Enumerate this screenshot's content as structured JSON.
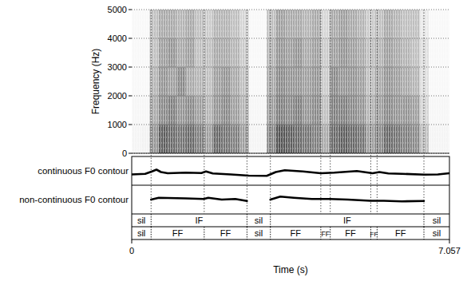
{
  "chart_data": {
    "type": "spectrogram",
    "xlabel": "Time (s)",
    "ylabel": "Frequency (Hz)",
    "xlim": [
      0,
      7.057
    ],
    "xticks": [
      0,
      7.057
    ],
    "ylim": [
      0,
      5000
    ],
    "yticks": [
      0,
      1000,
      2000,
      3000,
      4000,
      5000
    ],
    "grid": true,
    "spectrogram": {
      "time_step": 0.2,
      "freq_step": 1000,
      "cells": [
        [
          0.05,
          0.04,
          0.03,
          0.03,
          0.03
        ],
        [
          0.06,
          0.04,
          0.03,
          0.03,
          0.03
        ],
        [
          0.5,
          0.4,
          0.35,
          0.3,
          0.3
        ],
        [
          0.75,
          0.55,
          0.5,
          0.45,
          0.4
        ],
        [
          0.7,
          0.6,
          0.45,
          0.5,
          0.4
        ],
        [
          0.65,
          0.5,
          0.55,
          0.4,
          0.35
        ],
        [
          0.7,
          0.55,
          0.4,
          0.45,
          0.4
        ],
        [
          0.6,
          0.45,
          0.35,
          0.3,
          0.3
        ],
        [
          0.45,
          0.35,
          0.3,
          0.3,
          0.25
        ],
        [
          0.7,
          0.5,
          0.45,
          0.4,
          0.35
        ],
        [
          0.65,
          0.55,
          0.5,
          0.4,
          0.35
        ],
        [
          0.6,
          0.45,
          0.4,
          0.35,
          0.3
        ],
        [
          0.45,
          0.35,
          0.3,
          0.25,
          0.2
        ],
        [
          0.05,
          0.04,
          0.03,
          0.03,
          0.03
        ],
        [
          0.05,
          0.04,
          0.03,
          0.03,
          0.03
        ],
        [
          0.55,
          0.45,
          0.4,
          0.35,
          0.3
        ],
        [
          0.8,
          0.6,
          0.55,
          0.5,
          0.45
        ],
        [
          0.75,
          0.55,
          0.5,
          0.45,
          0.4
        ],
        [
          0.7,
          0.6,
          0.5,
          0.5,
          0.4
        ],
        [
          0.65,
          0.5,
          0.45,
          0.4,
          0.35
        ],
        [
          0.6,
          0.55,
          0.5,
          0.45,
          0.4
        ],
        [
          0.4,
          0.3,
          0.25,
          0.25,
          0.2
        ],
        [
          0.7,
          0.6,
          0.55,
          0.45,
          0.4
        ],
        [
          0.75,
          0.6,
          0.5,
          0.5,
          0.45
        ],
        [
          0.7,
          0.55,
          0.5,
          0.45,
          0.4
        ],
        [
          0.65,
          0.5,
          0.45,
          0.4,
          0.35
        ],
        [
          0.45,
          0.35,
          0.3,
          0.3,
          0.25
        ],
        [
          0.55,
          0.45,
          0.4,
          0.35,
          0.3
        ],
        [
          0.7,
          0.55,
          0.5,
          0.45,
          0.4
        ],
        [
          0.65,
          0.5,
          0.45,
          0.4,
          0.35
        ],
        [
          0.6,
          0.5,
          0.4,
          0.35,
          0.3
        ],
        [
          0.55,
          0.45,
          0.35,
          0.3,
          0.3
        ],
        [
          0.3,
          0.2,
          0.15,
          0.15,
          0.1
        ],
        [
          0.05,
          0.04,
          0.03,
          0.03,
          0.03
        ],
        [
          0.05,
          0.04,
          0.03,
          0.03,
          0.03
        ],
        [
          0.05,
          0.04,
          0.03,
          0.03,
          0.03
        ]
      ]
    },
    "f0lim": [
      100,
      300
    ],
    "series": [
      {
        "name": "continuous F0 contour",
        "color": "#000000",
        "x": [
          0,
          0.3,
          0.45,
          0.55,
          0.65,
          0.8,
          1.2,
          1.55,
          1.65,
          1.8,
          2.2,
          2.6,
          3.0,
          3.2,
          3.4,
          3.8,
          4.2,
          4.5,
          5.0,
          5.35,
          5.5,
          5.7,
          6.0,
          6.5,
          6.8,
          7.057
        ],
        "values": [
          170,
          175,
          195,
          210,
          190,
          180,
          185,
          182,
          195,
          178,
          170,
          160,
          158,
          190,
          205,
          195,
          180,
          185,
          198,
          180,
          190,
          178,
          175,
          168,
          170,
          180
        ]
      },
      {
        "name": "non-continuous F0 contour",
        "color": "#000000",
        "x": [
          0.43,
          0.6,
          0.8,
          1.2,
          1.6,
          1.7,
          2.0,
          2.3,
          2.56,
          2.8,
          3.08,
          3.3,
          3.6,
          4.0,
          4.4,
          4.8,
          5.3,
          5.6,
          6.0,
          6.49
        ],
        "values": [
          200,
          215,
          213,
          210,
          205,
          215,
          200,
          205,
          188,
          null,
          200,
          225,
          215,
          205,
          205,
          200,
          190,
          190,
          185,
          188
        ]
      }
    ],
    "tiers": [
      {
        "intervals": [
          {
            "start": 0,
            "end": 0.43,
            "label": "sil"
          },
          {
            "start": 0.43,
            "end": 2.56,
            "label": "IF"
          },
          {
            "start": 2.56,
            "end": 3.08,
            "label": "sil"
          },
          {
            "start": 3.08,
            "end": 6.49,
            "label": "IF"
          },
          {
            "start": 6.49,
            "end": 7.057,
            "label": "sil"
          }
        ]
      },
      {
        "intervals": [
          {
            "start": 0,
            "end": 0.43,
            "label": "sil"
          },
          {
            "start": 0.43,
            "end": 1.61,
            "label": "FF"
          },
          {
            "start": 1.61,
            "end": 2.56,
            "label": "FF"
          },
          {
            "start": 2.56,
            "end": 3.08,
            "label": "sil"
          },
          {
            "start": 3.08,
            "end": 4.2,
            "label": "FF"
          },
          {
            "start": 4.2,
            "end": 4.41,
            "label": "FF"
          },
          {
            "start": 4.41,
            "end": 5.31,
            "label": "FF"
          },
          {
            "start": 5.31,
            "end": 5.45,
            "label": "FF"
          },
          {
            "start": 5.45,
            "end": 6.49,
            "label": "FF"
          },
          {
            "start": 6.49,
            "end": 7.057,
            "label": "sil"
          }
        ]
      }
    ]
  }
}
